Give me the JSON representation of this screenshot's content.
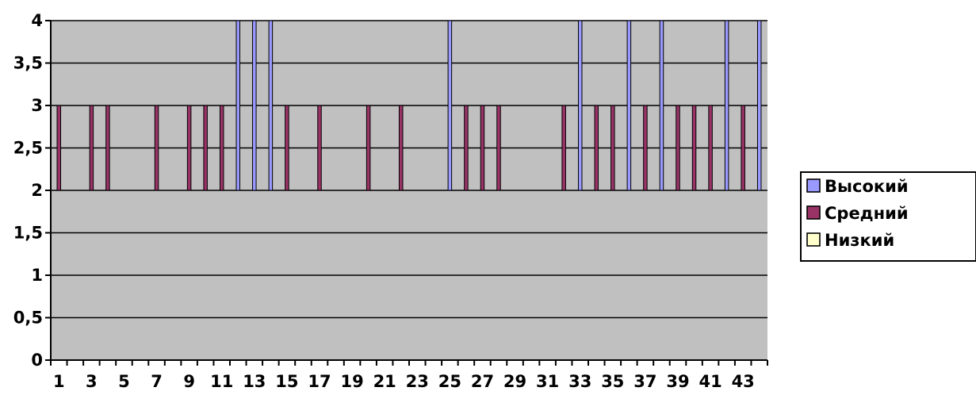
{
  "chart_data": {
    "type": "bar",
    "title": "",
    "xlabel": "",
    "ylabel": "",
    "ylim": [
      0,
      4
    ],
    "y_ticks": [
      0,
      0.5,
      1,
      1.5,
      2,
      2.5,
      3,
      3.5,
      4
    ],
    "y_tick_labels": [
      "0",
      "0,5",
      "1",
      "1,5",
      "2",
      "2,5",
      "3",
      "3,5",
      "4"
    ],
    "categories": [
      1,
      2,
      3,
      4,
      5,
      6,
      7,
      8,
      9,
      10,
      11,
      12,
      13,
      14,
      15,
      16,
      17,
      18,
      19,
      20,
      21,
      22,
      23,
      24,
      25,
      26,
      27,
      28,
      29,
      30,
      31,
      32,
      33,
      34,
      35,
      36,
      37,
      38,
      39,
      40,
      41,
      42,
      43,
      44
    ],
    "x_tick_labels": [
      "1",
      "3",
      "5",
      "7",
      "9",
      "11",
      "13",
      "15",
      "17",
      "19",
      "21",
      "23",
      "25",
      "27",
      "29",
      "31",
      "33",
      "35",
      "37",
      "39",
      "41",
      "43"
    ],
    "baseline": 2,
    "grid": true,
    "legend_position": "right",
    "series": [
      {
        "name": "Высокий",
        "color": "#9999ff",
        "values": [
          null,
          null,
          null,
          null,
          null,
          null,
          null,
          null,
          null,
          null,
          null,
          4,
          4,
          4,
          null,
          null,
          null,
          null,
          null,
          null,
          null,
          null,
          null,
          null,
          4,
          null,
          null,
          null,
          null,
          null,
          null,
          null,
          4,
          null,
          null,
          4,
          null,
          4,
          null,
          null,
          null,
          4,
          null,
          4
        ]
      },
      {
        "name": "Средний",
        "color": "#993366",
        "values": [
          3,
          null,
          3,
          3,
          null,
          null,
          3,
          null,
          3,
          3,
          3,
          null,
          null,
          null,
          3,
          null,
          3,
          null,
          null,
          3,
          null,
          3,
          null,
          null,
          null,
          3,
          3,
          3,
          null,
          null,
          null,
          3,
          null,
          3,
          3,
          null,
          3,
          null,
          3,
          3,
          3,
          null,
          3,
          null
        ]
      },
      {
        "name": "Низкий",
        "color": "#ffffcc",
        "values": [
          null,
          null,
          null,
          null,
          null,
          null,
          null,
          null,
          null,
          null,
          null,
          null,
          null,
          null,
          null,
          null,
          null,
          null,
          null,
          null,
          null,
          null,
          null,
          null,
          null,
          null,
          null,
          null,
          null,
          null,
          null,
          null,
          null,
          null,
          null,
          null,
          null,
          null,
          null,
          null,
          null,
          null,
          null,
          null
        ]
      }
    ]
  }
}
